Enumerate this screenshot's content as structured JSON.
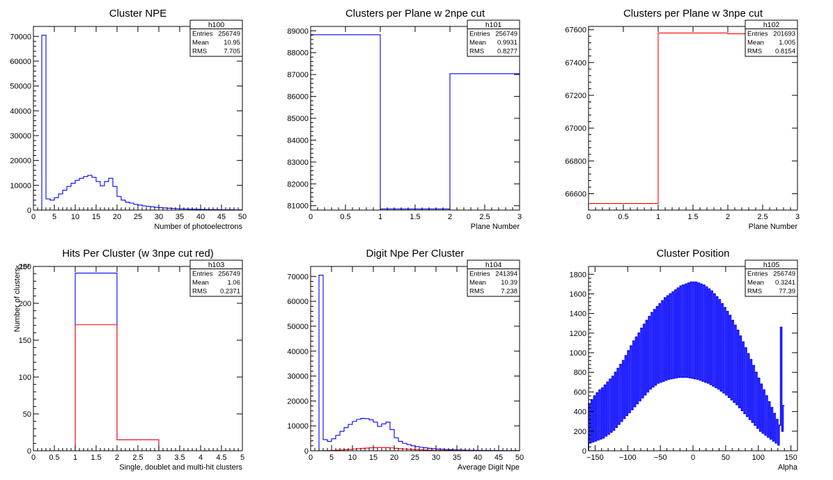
{
  "colors": {
    "blue": "#0000ff",
    "red": "#ff0000",
    "frame": "#000000"
  },
  "chart_data": [
    {
      "id": "h100",
      "type": "histogram",
      "title": "Cluster NPE",
      "xlabel": "Number of photoelectrons",
      "ylabel": "",
      "xlim": [
        0,
        50
      ],
      "ylim": [
        0,
        74000
      ],
      "xticks": [
        0,
        5,
        10,
        15,
        20,
        25,
        30,
        35,
        40,
        45,
        50
      ],
      "xtick_labels": [
        "0",
        "5",
        "10",
        "15",
        "20",
        "25",
        "30",
        "35",
        "40",
        "45",
        "50"
      ],
      "yticks": [
        0,
        10000,
        20000,
        30000,
        40000,
        50000,
        60000,
        70000
      ],
      "ytick_labels": [
        "0",
        "10000",
        "20000",
        "30000",
        "40000",
        "50000",
        "60000",
        "70000"
      ],
      "stats": {
        "name": "h100",
        "rows": [
          [
            "Entries",
            "256749"
          ],
          [
            "Mean",
            "10.95"
          ],
          [
            "RMS",
            "7.705"
          ]
        ]
      },
      "series": [
        {
          "color": "blue",
          "bin_edges_start": 0,
          "bin_width": 1,
          "values": [
            0,
            0,
            70500,
            4500,
            4000,
            5000,
            6500,
            8000,
            9500,
            10800,
            12000,
            12800,
            13500,
            14000,
            13200,
            11500,
            9800,
            11500,
            12800,
            9500,
            5500,
            4000,
            3200,
            2800,
            2300,
            2000,
            1700,
            1500,
            1300,
            1100,
            950,
            850,
            750,
            650,
            550,
            480,
            420,
            370,
            330,
            290,
            260,
            230,
            200,
            180,
            160,
            140,
            120,
            110,
            100,
            90
          ]
        }
      ]
    },
    {
      "id": "h101",
      "type": "histogram",
      "title": "Clusters per Plane w 2npe cut",
      "xlabel": "Plane Number",
      "ylabel": "",
      "xlim": [
        0,
        3
      ],
      "ylim": [
        80800,
        89200
      ],
      "xticks": [
        0,
        0.5,
        1,
        1.5,
        2,
        2.5,
        3
      ],
      "xtick_labels": [
        "0",
        "0.5",
        "1",
        "1.5",
        "2",
        "2.5",
        "3"
      ],
      "yticks": [
        81000,
        82000,
        83000,
        84000,
        85000,
        86000,
        87000,
        88000,
        89000
      ],
      "ytick_labels": [
        "81000",
        "82000",
        "83000",
        "84000",
        "85000",
        "86000",
        "87000",
        "88000",
        "89000"
      ],
      "stats": {
        "name": "h101",
        "rows": [
          [
            "Entries",
            "256749"
          ],
          [
            "Mean",
            "0.9931"
          ],
          [
            "RMS",
            "0.8277"
          ]
        ]
      },
      "series": [
        {
          "color": "blue",
          "bin_edges_start": 0,
          "bin_width": 1,
          "values": [
            88820,
            80850,
            87040
          ]
        }
      ]
    },
    {
      "id": "h102",
      "type": "histogram",
      "title": "Clusters per Plane w 3npe cut",
      "xlabel": "Plane Number",
      "ylabel": "",
      "xlim": [
        0,
        3
      ],
      "ylim": [
        66500,
        67620
      ],
      "xticks": [
        0,
        0.5,
        1,
        1.5,
        2,
        2.5,
        3
      ],
      "xtick_labels": [
        "0",
        "0.5",
        "1",
        "1.5",
        "2",
        "2.5",
        "3"
      ],
      "yticks": [
        66600,
        66800,
        67000,
        67200,
        67400,
        67600
      ],
      "ytick_labels": [
        "66600",
        "66800",
        "67000",
        "67200",
        "67400",
        "67600"
      ],
      "stats": {
        "name": "h102",
        "rows": [
          [
            "Entries",
            "201693"
          ],
          [
            "Mean",
            "1.005"
          ],
          [
            "RMS",
            "0.8154"
          ]
        ]
      },
      "series": [
        {
          "color": "red",
          "bin_edges_start": 0,
          "bin_width": 1,
          "values": [
            66540,
            67580,
            67575
          ]
        }
      ]
    },
    {
      "id": "h103",
      "type": "histogram",
      "title": "Hits Per Cluster (w 3npe cut red)",
      "xlabel": "Single, doublet and multi-hit clusters",
      "ylabel": "Number of clusters",
      "yexponent": "×10³",
      "xlim": [
        0,
        5
      ],
      "ylim": [
        0,
        250
      ],
      "xticks": [
        0,
        0.5,
        1,
        1.5,
        2,
        2.5,
        3,
        3.5,
        4,
        4.5,
        5
      ],
      "xtick_labels": [
        "0",
        "0.5",
        "1",
        "1.5",
        "2",
        "2.5",
        "3",
        "3.5",
        "4",
        "4.5",
        "5"
      ],
      "yticks": [
        0,
        50,
        100,
        150,
        200,
        250
      ],
      "ytick_labels": [
        "0",
        "50",
        "100",
        "150",
        "200",
        "250"
      ],
      "stats": {
        "name": "h103",
        "rows": [
          [
            "Entries",
            "256749"
          ],
          [
            "Mean",
            "1.06"
          ],
          [
            "RMS",
            "0.2371"
          ]
        ]
      },
      "series": [
        {
          "color": "blue",
          "bin_edges_start": 0,
          "bin_width": 1,
          "values": [
            0,
            241,
            15,
            0,
            0
          ]
        },
        {
          "color": "red",
          "bin_edges_start": 0,
          "bin_width": 1,
          "values": [
            0,
            171,
            15,
            0,
            0
          ]
        }
      ]
    },
    {
      "id": "h104",
      "type": "histogram",
      "title": "Digit Npe Per Cluster",
      "xlabel": "Average Digit Npe",
      "ylabel": "",
      "xlim": [
        0,
        50
      ],
      "ylim": [
        0,
        74000
      ],
      "xticks": [
        0,
        5,
        10,
        15,
        20,
        25,
        30,
        35,
        40,
        45,
        50
      ],
      "xtick_labels": [
        "0",
        "5",
        "10",
        "15",
        "20",
        "25",
        "30",
        "35",
        "40",
        "45",
        "50"
      ],
      "yticks": [
        0,
        10000,
        20000,
        30000,
        40000,
        50000,
        60000,
        70000
      ],
      "ytick_labels": [
        "0",
        "10000",
        "20000",
        "30000",
        "40000",
        "50000",
        "60000",
        "70000"
      ],
      "stats": {
        "name": "h104",
        "rows": [
          [
            "Entries",
            "241394"
          ],
          [
            "Mean",
            "10.39"
          ],
          [
            "RMS",
            "7.238"
          ]
        ]
      },
      "series": [
        {
          "color": "blue",
          "bin_edges_start": 0,
          "bin_width": 1,
          "values": [
            0,
            0,
            70500,
            4500,
            3800,
            4800,
            6200,
            7800,
            9300,
            10600,
            11800,
            12600,
            13000,
            12900,
            12400,
            11500,
            9800,
            10800,
            11500,
            8500,
            5200,
            3800,
            3000,
            2500,
            2000,
            1700,
            1400,
            1200,
            1000,
            850,
            700,
            600,
            500,
            430,
            370,
            320,
            280,
            240,
            210,
            180,
            160,
            140,
            120,
            100,
            90,
            80,
            70,
            60,
            50,
            40
          ]
        },
        {
          "color": "red",
          "bin_edges_start": 0,
          "bin_width": 1,
          "values": [
            0,
            0,
            0,
            50,
            80,
            150,
            250,
            350,
            450,
            550,
            700,
            850,
            1000,
            1100,
            1200,
            1250,
            1300,
            1300,
            1250,
            1150,
            1000,
            850,
            700,
            600,
            500,
            420,
            360,
            300,
            250,
            210,
            180,
            150,
            130,
            110,
            100,
            90,
            80,
            70,
            60,
            50,
            45,
            40,
            35,
            30,
            25,
            20,
            18,
            15,
            12,
            10
          ]
        }
      ]
    },
    {
      "id": "h105",
      "type": "histogram",
      "title": "Cluster Position",
      "xlabel": "Alpha",
      "ylabel": "",
      "xlim": [
        -160,
        160
      ],
      "ylim": [
        0,
        1880
      ],
      "xticks": [
        -150,
        -100,
        -50,
        0,
        50,
        100,
        150
      ],
      "xtick_labels": [
        "−150",
        "−100",
        "−50",
        "0",
        "50",
        "100",
        "150"
      ],
      "yticks": [
        0,
        200,
        400,
        600,
        800,
        1000,
        1200,
        1400,
        1600,
        1800
      ],
      "ytick_labels": [
        "0",
        "200",
        "400",
        "600",
        "800",
        "1000",
        "1200",
        "1400",
        "1600",
        "1800"
      ],
      "stats": {
        "name": "h105",
        "rows": [
          [
            "Entries",
            "256749"
          ],
          [
            "Mean",
            "0.3241"
          ],
          [
            "RMS",
            "77.39"
          ]
        ]
      },
      "series": [
        {
          "color": "blue",
          "bin_edges_start": -160,
          "bin_width": 2,
          "values": [
            480,
            80,
            520,
            90,
            560,
            100,
            590,
            110,
            620,
            120,
            640,
            130,
            670,
            150,
            700,
            170,
            730,
            190,
            760,
            210,
            800,
            240,
            840,
            270,
            880,
            300,
            920,
            330,
            970,
            360,
            1020,
            390,
            1070,
            420,
            1120,
            450,
            1160,
            480,
            1200,
            510,
            1250,
            540,
            1290,
            570,
            1330,
            600,
            1370,
            630,
            1410,
            650,
            1440,
            670,
            1470,
            690,
            1500,
            700,
            1530,
            710,
            1560,
            720,
            1580,
            730,
            1600,
            735,
            1620,
            740,
            1640,
            745,
            1660,
            750,
            1680,
            750,
            1690,
            750,
            1700,
            750,
            1710,
            745,
            1720,
            740,
            1720,
            735,
            1720,
            730,
            1710,
            720,
            1700,
            710,
            1690,
            700,
            1670,
            690,
            1650,
            675,
            1630,
            660,
            1600,
            645,
            1570,
            630,
            1540,
            610,
            1500,
            590,
            1460,
            570,
            1420,
            545,
            1380,
            520,
            1330,
            495,
            1280,
            470,
            1230,
            440,
            1170,
            410,
            1110,
            380,
            1050,
            350,
            990,
            320,
            930,
            290,
            870,
            260,
            800,
            230,
            740,
            200,
            680,
            180,
            620,
            160,
            560,
            140,
            500,
            120,
            440,
            100,
            380,
            80,
            320,
            60,
            260,
            1260,
            200,
            460
          ]
        }
      ]
    }
  ]
}
